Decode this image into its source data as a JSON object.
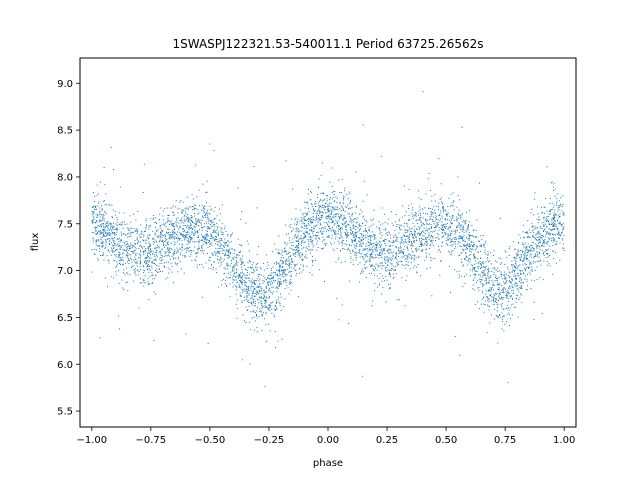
{
  "chart_data": {
    "type": "scatter",
    "title": "1SWASPJ122321.53-540011.1 Period 63725.26562s",
    "xlabel": "phase",
    "ylabel": "flux",
    "xlim": [
      -1.05,
      1.05
    ],
    "ylim": [
      5.33,
      9.27
    ],
    "x_ticks": [
      -1.0,
      -0.75,
      -0.5,
      -0.25,
      0.0,
      0.25,
      0.5,
      0.75,
      1.0
    ],
    "x_tick_labels": [
      "−1.00",
      "−0.75",
      "−0.50",
      "−0.25",
      "0.00",
      "0.25",
      "0.50",
      "0.75",
      "1.00"
    ],
    "y_ticks": [
      5.5,
      6.0,
      6.5,
      7.0,
      7.5,
      8.0,
      8.5,
      9.0
    ],
    "y_tick_labels": [
      "5.5",
      "6.0",
      "6.5",
      "7.0",
      "7.5",
      "8.0",
      "8.5",
      "9.0"
    ],
    "grid": false,
    "point_color": "#1f77b4",
    "series": [
      {
        "phase_profile": [
          [
            -1.0,
            7.48
          ],
          [
            -0.95,
            7.45
          ],
          [
            -0.9,
            7.33
          ],
          [
            -0.85,
            7.22
          ],
          [
            -0.8,
            7.17
          ],
          [
            -0.75,
            7.21
          ],
          [
            -0.7,
            7.3
          ],
          [
            -0.65,
            7.38
          ],
          [
            -0.6,
            7.43
          ],
          [
            -0.55,
            7.43
          ],
          [
            -0.5,
            7.38
          ],
          [
            -0.45,
            7.25
          ],
          [
            -0.4,
            7.05
          ],
          [
            -0.35,
            6.9
          ],
          [
            -0.3,
            6.75
          ],
          [
            -0.27,
            6.7
          ],
          [
            -0.25,
            6.75
          ],
          [
            -0.2,
            6.95
          ],
          [
            -0.15,
            7.2
          ],
          [
            -0.1,
            7.4
          ],
          [
            -0.05,
            7.52
          ],
          [
            0.0,
            7.55
          ],
          [
            0.05,
            7.5
          ],
          [
            0.1,
            7.4
          ],
          [
            0.15,
            7.27
          ],
          [
            0.2,
            7.19
          ],
          [
            0.25,
            7.2
          ],
          [
            0.3,
            7.26
          ],
          [
            0.35,
            7.33
          ],
          [
            0.4,
            7.4
          ],
          [
            0.45,
            7.45
          ],
          [
            0.5,
            7.45
          ],
          [
            0.55,
            7.38
          ],
          [
            0.6,
            7.22
          ],
          [
            0.65,
            7.0
          ],
          [
            0.7,
            6.78
          ],
          [
            0.73,
            6.7
          ],
          [
            0.75,
            6.75
          ],
          [
            0.8,
            6.97
          ],
          [
            0.85,
            7.2
          ],
          [
            0.9,
            7.37
          ],
          [
            0.95,
            7.48
          ],
          [
            1.0,
            7.52
          ]
        ],
        "scatter_sd": 0.17
      }
    ]
  }
}
